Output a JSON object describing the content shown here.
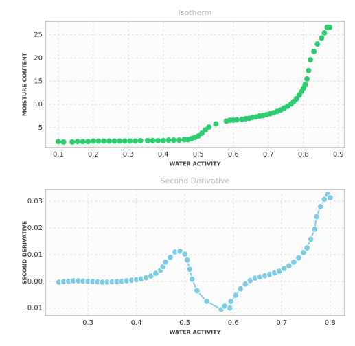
{
  "chart_data": [
    {
      "type": "scatter",
      "title": "Isotherm",
      "x_label": "WATER ACTIVITY",
      "y_label": "MOISTURE CONTENT",
      "color": "#2ecc71",
      "grid": true,
      "xlim": [
        0.063,
        0.918
      ],
      "ylim": [
        0.7,
        27.9
      ],
      "xticks": [
        0.1,
        0.2,
        0.3,
        0.4,
        0.5,
        0.6,
        0.7,
        0.8,
        0.9
      ],
      "yticks": [
        5,
        10,
        15,
        20,
        25
      ],
      "x": [
        0.1,
        0.115,
        0.14,
        0.155,
        0.17,
        0.185,
        0.2,
        0.215,
        0.23,
        0.245,
        0.26,
        0.275,
        0.29,
        0.305,
        0.32,
        0.335,
        0.355,
        0.37,
        0.385,
        0.4,
        0.415,
        0.43,
        0.445,
        0.46,
        0.47,
        0.48,
        0.49,
        0.5,
        0.51,
        0.52,
        0.53,
        0.55,
        0.58,
        0.59,
        0.6,
        0.61,
        0.625,
        0.635,
        0.645,
        0.655,
        0.665,
        0.675,
        0.685,
        0.695,
        0.705,
        0.715,
        0.725,
        0.735,
        0.745,
        0.755,
        0.765,
        0.772,
        0.78,
        0.788,
        0.795,
        0.8,
        0.805,
        0.81,
        0.815,
        0.82,
        0.83,
        0.84,
        0.852,
        0.86,
        0.868,
        0.875
      ],
      "values": [
        2.0,
        1.9,
        1.9,
        2.0,
        2.0,
        2.0,
        2.1,
        2.1,
        2.1,
        2.1,
        2.1,
        2.1,
        2.1,
        2.1,
        2.1,
        2.2,
        2.2,
        2.2,
        2.2,
        2.2,
        2.3,
        2.3,
        2.3,
        2.4,
        2.4,
        2.6,
        2.9,
        3.2,
        3.8,
        4.5,
        5.1,
        5.8,
        6.4,
        6.6,
        6.6,
        6.7,
        6.8,
        6.9,
        7.0,
        7.2,
        7.3,
        7.5,
        7.6,
        7.8,
        8.0,
        8.2,
        8.5,
        8.8,
        9.2,
        9.6,
        10.1,
        10.6,
        11.2,
        12.0,
        12.8,
        13.5,
        14.3,
        15.5,
        17.3,
        19.6,
        21.4,
        23.0,
        24.3,
        25.4,
        26.6,
        26.6
      ]
    },
    {
      "type": "line",
      "title": "Second Derivative",
      "x_label": "WATER ACTIVITY",
      "y_label": "SECOND DERIVATIVE",
      "color": "#7ecbe4",
      "grid": true,
      "xlim": [
        0.212,
        0.83
      ],
      "ylim": [
        -0.0129,
        0.0344
      ],
      "xticks": [
        0.3,
        0.4,
        0.5,
        0.6,
        0.7,
        0.8
      ],
      "yticks": [
        0.03,
        0.02,
        0.01,
        {
          "value": 0,
          "label": "0.00"
        },
        -0.01
      ],
      "x": [
        0.24,
        0.25,
        0.26,
        0.27,
        0.28,
        0.29,
        0.3,
        0.31,
        0.32,
        0.33,
        0.34,
        0.35,
        0.36,
        0.37,
        0.38,
        0.39,
        0.4,
        0.41,
        0.42,
        0.43,
        0.44,
        0.45,
        0.455,
        0.46,
        0.47,
        0.48,
        0.49,
        0.5,
        0.505,
        0.51,
        0.515,
        0.525,
        0.545,
        0.575,
        0.582,
        0.593,
        0.595,
        0.605,
        0.615,
        0.625,
        0.635,
        0.645,
        0.655,
        0.665,
        0.675,
        0.685,
        0.695,
        0.705,
        0.715,
        0.725,
        0.735,
        0.745,
        0.752,
        0.76,
        0.768,
        0.772,
        0.78,
        0.788,
        0.795,
        0.8
      ],
      "values": [
        -0.0003,
        -0.0001,
        0.0,
        0.0002,
        0.0002,
        0.0001,
        0.0,
        -0.0001,
        -0.0002,
        -0.0003,
        -0.0003,
        -0.0002,
        -0.0001,
        0.0,
        0.0002,
        0.0004,
        0.0006,
        0.0009,
        0.0013,
        0.002,
        0.003,
        0.0042,
        0.0055,
        0.0072,
        0.009,
        0.011,
        0.0113,
        0.0102,
        0.008,
        0.0045,
        0.0008,
        -0.0035,
        -0.0075,
        -0.0105,
        -0.0093,
        -0.01,
        -0.0075,
        -0.0052,
        -0.0028,
        -0.001,
        0.0003,
        0.0012,
        0.0017,
        0.0021,
        0.0026,
        0.0032,
        0.0038,
        0.0048,
        0.0058,
        0.0072,
        0.0088,
        0.0108,
        0.0125,
        0.0158,
        0.0195,
        0.0242,
        0.028,
        0.0307,
        0.0325,
        0.0313
      ]
    }
  ]
}
